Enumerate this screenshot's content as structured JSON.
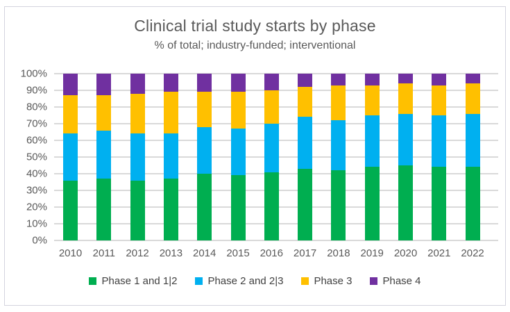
{
  "chart_data": {
    "type": "bar",
    "stacked": true,
    "title": "Clinical trial study starts by phase",
    "subtitle": "% of total; industry-funded; interventional",
    "categories": [
      "2010",
      "2011",
      "2012",
      "2013",
      "2014",
      "2015",
      "2016",
      "2017",
      "2018",
      "2019",
      "2020",
      "2021",
      "2022"
    ],
    "series": [
      {
        "name": "Phase 1 and 1|2",
        "color": "#00AE50",
        "values": [
          36,
          37,
          36,
          37,
          40,
          39,
          41,
          43,
          42,
          44,
          45,
          44,
          44
        ]
      },
      {
        "name": "Phase 2 and 2|3",
        "color": "#00B0F0",
        "values": [
          28,
          29,
          28,
          27,
          28,
          28,
          29,
          31,
          30,
          31,
          31,
          31,
          32
        ]
      },
      {
        "name": "Phase 3",
        "color": "#FFC000",
        "values": [
          23,
          21,
          24,
          25,
          21,
          22,
          20,
          18,
          21,
          18,
          18,
          18,
          18
        ]
      },
      {
        "name": "Phase 4",
        "color": "#7030A0",
        "values": [
          13,
          13,
          12,
          11,
          11,
          11,
          10,
          8,
          7,
          7,
          6,
          7,
          6
        ]
      }
    ],
    "ylabel": "",
    "xlabel": "",
    "ylim": [
      0,
      100
    ],
    "y_ticks": [
      "0%",
      "10%",
      "20%",
      "30%",
      "40%",
      "50%",
      "60%",
      "70%",
      "80%",
      "90%",
      "100%"
    ],
    "grid": "horizontal",
    "gridline_color": "#D9D9D9",
    "legend_position": "bottom",
    "text_color": "#595959"
  }
}
